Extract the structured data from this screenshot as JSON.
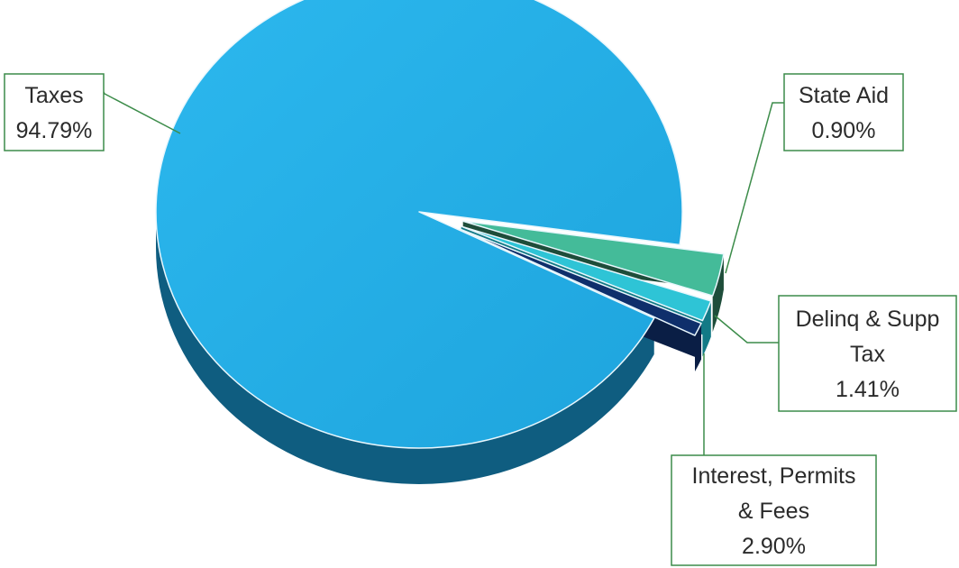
{
  "chart_data": {
    "type": "pie",
    "title": "",
    "slices": [
      {
        "label_lines": [
          "Taxes"
        ],
        "value": 94.79,
        "value_label": "94.79%",
        "color": "#23AEE5",
        "side_color": "#0F5D80"
      },
      {
        "label_lines": [
          "Interest, Permits",
          "& Fees"
        ],
        "value": 2.9,
        "value_label": "2.90%",
        "color": "#44BB99",
        "side_color": "#1E4D3A"
      },
      {
        "label_lines": [
          "Delinq & Supp",
          "Tax"
        ],
        "value": 1.41,
        "value_label": "1.41%",
        "color": "#2EC4D6",
        "side_color": "#137A86"
      },
      {
        "label_lines": [
          "State Aid"
        ],
        "value": 0.9,
        "value_label": "0.90%",
        "color": "#0F2F6B",
        "side_color": "#0A1E45"
      }
    ],
    "legend": "none",
    "label_style": "callout boxes with leader lines",
    "callout_border_color": "#3C8C4A"
  }
}
